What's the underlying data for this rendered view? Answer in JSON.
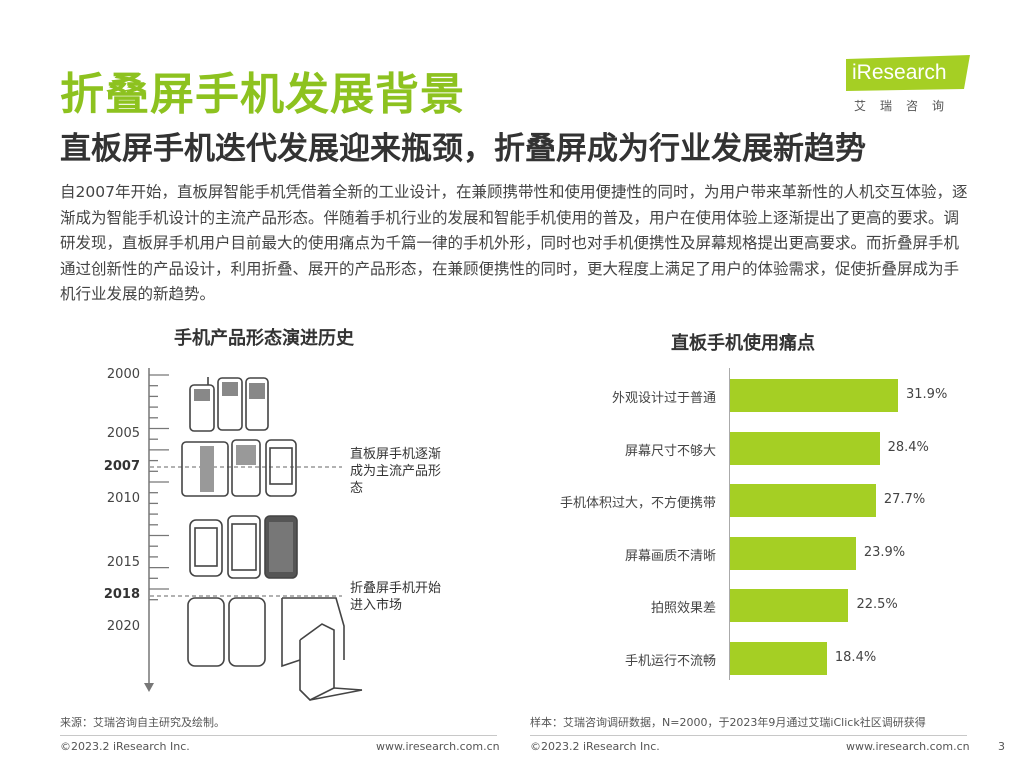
{
  "header": {
    "title": "折叠屏手机发展背景",
    "subtitle": "直板屏手机迭代发展迎来瓶颈，折叠屏成为行业发展新趋势"
  },
  "logo": {
    "text": "iResearch",
    "cn": "艾瑞咨询",
    "color": "#a5cf24"
  },
  "intro": "自2007年开始，直板屏智能手机凭借着全新的工业设计，在兼顾携带性和使用便捷性的同时，为用户带来革新性的人机交互体验，逐渐成为智能手机设计的主流产品形态。伴随着手机行业的发展和智能手机使用的普及，用户在使用体验上逐渐提出了更高的要求。调研发现，直板屏手机用户目前最大的使用痛点为千篇一律的手机外形，同时也对手机便携性及屏幕规格提出更高要求。而折叠屏手机通过创新性的产品设计，利用折叠、展开的产品形态，在兼顾便携性的同时，更大程度上满足了用户的体验需求，促使折叠屏成为手机行业发展的新趋势。",
  "timeline": {
    "title": "手机产品形态演进历史",
    "years": [
      {
        "label": "2000",
        "value": 2000,
        "bold": false
      },
      {
        "label": "2005",
        "value": 2005,
        "bold": false
      },
      {
        "label": "2007",
        "value": 2007,
        "bold": true
      },
      {
        "label": "2010",
        "value": 2010,
        "bold": false
      },
      {
        "label": "2015",
        "value": 2015,
        "bold": false
      },
      {
        "label": "2018",
        "value": 2018,
        "bold": true
      },
      {
        "label": "2020",
        "value": 2020,
        "bold": false
      }
    ],
    "note_2007": "直板屏手机逐渐成为主流产品形态",
    "note_2018": "折叠屏手机开始进入市场"
  },
  "chart_data": {
    "type": "bar",
    "orientation": "horizontal",
    "title": "直板手机使用痛点",
    "categories": [
      "外观设计过于普通",
      "屏幕尺寸不够大",
      "手机体积过大，不方便携带",
      "屏幕画质不清晰",
      "拍照效果差",
      "手机运行不流畅"
    ],
    "values": [
      31.9,
      28.4,
      27.7,
      23.9,
      22.5,
      18.4
    ],
    "value_labels": [
      "31.9%",
      "28.4%",
      "27.7%",
      "23.9%",
      "22.5%",
      "18.4%"
    ],
    "unit": "%",
    "bar_color": "#a5cf24",
    "xlim": [
      0,
      35
    ],
    "grid": false,
    "legend": "none"
  },
  "sources": {
    "left": "来源：艾瑞咨询自主研究及绘制。",
    "right": "样本：艾瑞咨询调研数据，N=2000，于2023年9月通过艾瑞iClick社区调研获得"
  },
  "footer": {
    "copyright_left": "©2023.2 iResearch Inc.",
    "site_left": "www.iresearch.com.cn",
    "copyright_right": "©2023.2 iResearch Inc.",
    "site_right": "www.iresearch.com.cn",
    "page": "3"
  }
}
